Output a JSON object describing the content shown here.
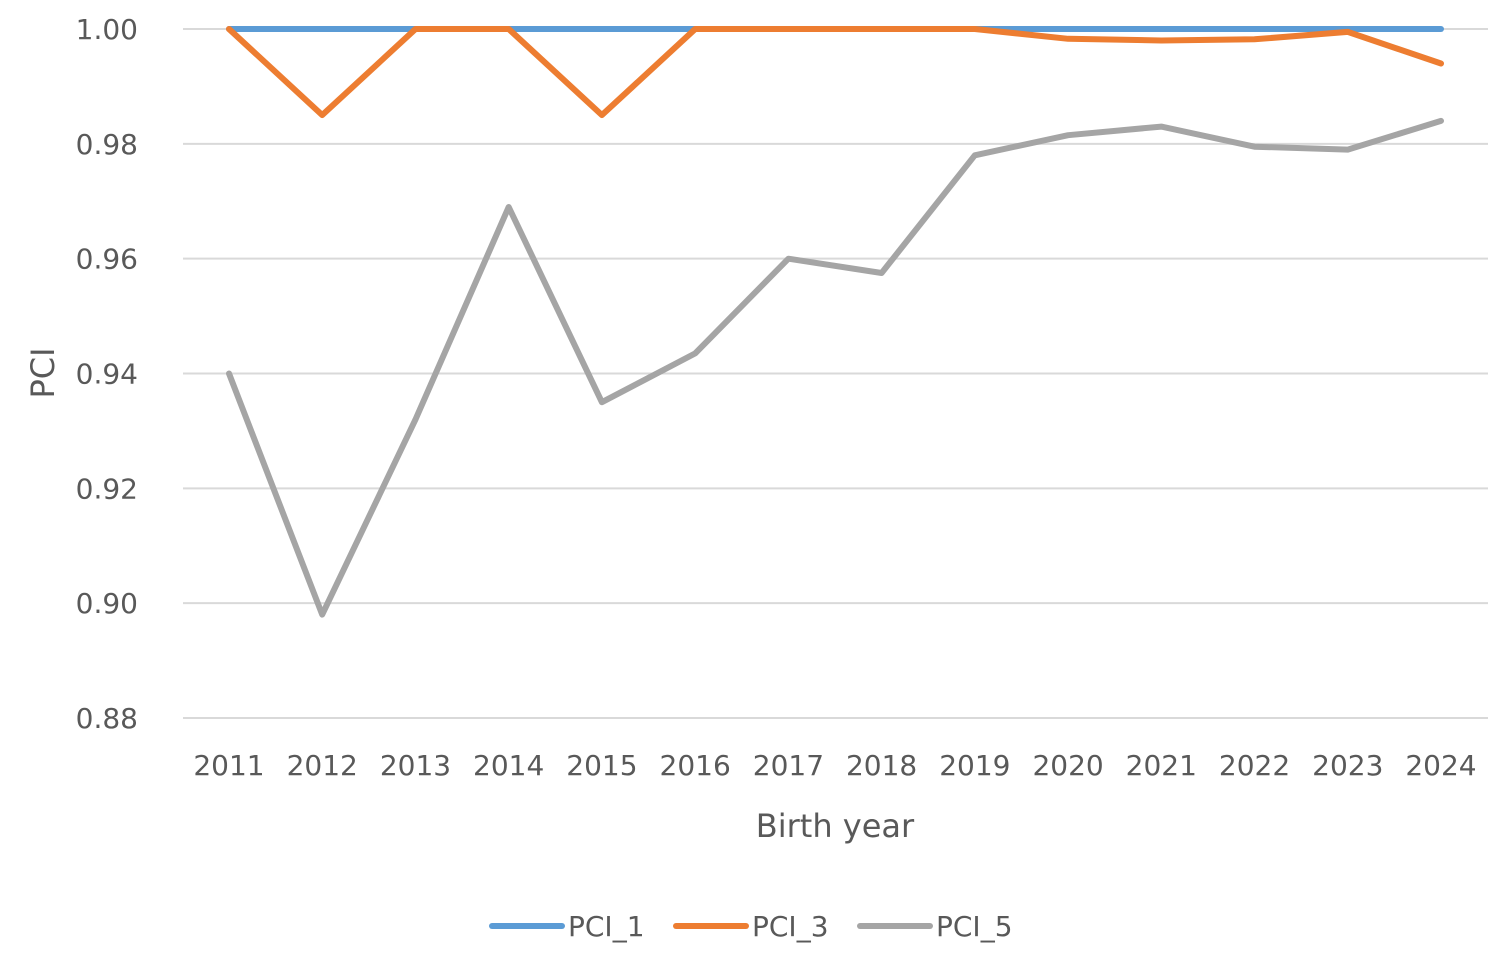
{
  "chart_data": {
    "type": "line",
    "xlabel": "Birth year",
    "ylabel": "PCI",
    "ylim": [
      0.88,
      1.0
    ],
    "y_ticks": [
      "0.88",
      "0.90",
      "0.92",
      "0.94",
      "0.96",
      "0.98",
      "1.00"
    ],
    "y_tick_values": [
      0.88,
      0.9,
      0.92,
      0.94,
      0.96,
      0.98,
      1.0
    ],
    "categories": [
      "2011",
      "2012",
      "2013",
      "2014",
      "2015",
      "2016",
      "2017",
      "2018",
      "2019",
      "2020",
      "2021",
      "2022",
      "2023",
      "2024"
    ],
    "grid": true,
    "legend_position": "bottom",
    "series": [
      {
        "name": "PCI_1",
        "color": "#5b9bd5",
        "values": [
          1.0,
          1.0,
          1.0,
          1.0,
          1.0,
          1.0,
          1.0,
          1.0,
          1.0,
          1.0,
          1.0,
          1.0,
          1.0,
          1.0
        ]
      },
      {
        "name": "PCI_3",
        "color": "#ed7d31",
        "values": [
          1.0,
          0.985,
          1.0,
          1.0,
          0.985,
          1.0,
          1.0,
          1.0,
          1.0,
          0.9983,
          0.998,
          0.9982,
          0.9995,
          0.994
        ]
      },
      {
        "name": "PCI_5",
        "color": "#a5a5a5",
        "values": [
          0.94,
          0.898,
          0.932,
          0.969,
          0.935,
          0.9435,
          0.96,
          0.9575,
          0.978,
          0.9815,
          0.983,
          0.9795,
          0.979,
          0.984
        ]
      }
    ]
  }
}
